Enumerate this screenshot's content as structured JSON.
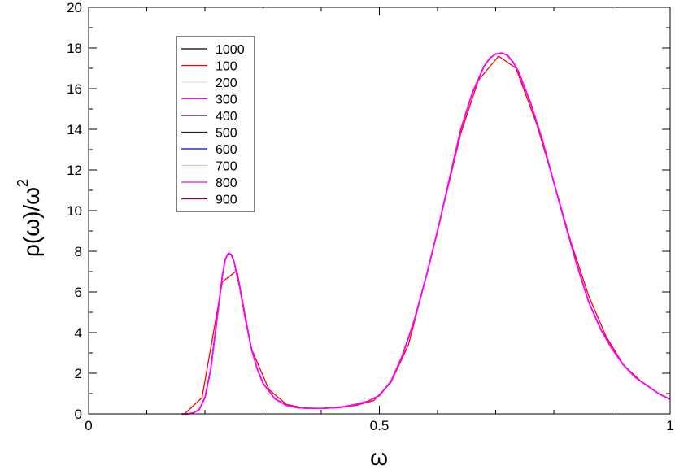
{
  "chart_data": {
    "type": "line",
    "title": "",
    "xlabel": "ω",
    "ylabel_main": "ρ(ω)/ω",
    "ylabel_sup": "2",
    "xlim": [
      0,
      1
    ],
    "ylim": [
      0,
      20
    ],
    "x_major_ticks": [
      0,
      0.5,
      1
    ],
    "x_major_tick_labels": [
      "0",
      "0.5",
      "1"
    ],
    "x_minor_ticks": [
      0.1,
      0.2,
      0.3,
      0.4,
      0.6,
      0.7,
      0.8,
      0.9
    ],
    "y_major_ticks": [
      0,
      2,
      4,
      6,
      8,
      10,
      12,
      14,
      16,
      18,
      20
    ],
    "y_major_tick_labels": [
      "0",
      "2",
      "4",
      "6",
      "8",
      "10",
      "12",
      "14",
      "16",
      "18",
      "20"
    ],
    "grid": false,
    "legend_position": "top-left",
    "smooth_curve": {
      "x": [
        0.16,
        0.17,
        0.18,
        0.19,
        0.2,
        0.21,
        0.22,
        0.23,
        0.235,
        0.24,
        0.245,
        0.25,
        0.26,
        0.27,
        0.28,
        0.29,
        0.3,
        0.32,
        0.34,
        0.36,
        0.38,
        0.4,
        0.42,
        0.44,
        0.46,
        0.48,
        0.5,
        0.52,
        0.54,
        0.56,
        0.58,
        0.6,
        0.62,
        0.64,
        0.66,
        0.68,
        0.69,
        0.7,
        0.71,
        0.72,
        0.73,
        0.74,
        0.76,
        0.78,
        0.8,
        0.82,
        0.84,
        0.86,
        0.88,
        0.9,
        0.92,
        0.94,
        0.96,
        0.98,
        1.0
      ],
      "y": [
        0.0,
        0.0,
        0.05,
        0.2,
        0.8,
        2.2,
        4.5,
        6.8,
        7.6,
        7.9,
        7.85,
        7.5,
        6.2,
        4.6,
        3.2,
        2.2,
        1.5,
        0.75,
        0.42,
        0.3,
        0.27,
        0.27,
        0.3,
        0.36,
        0.47,
        0.62,
        0.9,
        1.6,
        2.9,
        4.6,
        6.7,
        9.0,
        11.5,
        14.0,
        15.8,
        17.1,
        17.5,
        17.7,
        17.75,
        17.65,
        17.3,
        16.8,
        15.3,
        13.5,
        11.4,
        9.3,
        7.3,
        5.5,
        4.2,
        3.2,
        2.4,
        1.8,
        1.4,
        1.0,
        0.72
      ]
    },
    "series": [
      {
        "name": "1000",
        "color": "#000000",
        "style": "smooth"
      },
      {
        "name": "100",
        "color": "#ff0000",
        "style": "coarse"
      },
      {
        "name": "200",
        "color": "#dddddd",
        "style": "smooth"
      },
      {
        "name": "300",
        "color": "#ff00ff",
        "style": "smooth"
      },
      {
        "name": "400",
        "color": "#3a0a3a",
        "style": "smooth"
      },
      {
        "name": "500",
        "color": "#222222",
        "style": "smooth"
      },
      {
        "name": "600",
        "color": "#0000cc",
        "style": "smooth"
      },
      {
        "name": "700",
        "color": "#cccccc",
        "style": "smooth"
      },
      {
        "name": "800",
        "color": "#ee00ee",
        "style": "smooth"
      },
      {
        "name": "900",
        "color": "#800060",
        "style": "smooth"
      }
    ],
    "coarse_series_points": {
      "x": [
        0.165,
        0.195,
        0.23,
        0.255,
        0.28,
        0.31,
        0.34,
        0.37,
        0.4,
        0.43,
        0.46,
        0.49,
        0.52,
        0.55,
        0.58,
        0.61,
        0.64,
        0.67,
        0.705,
        0.735,
        0.77,
        0.8,
        0.83,
        0.86,
        0.89,
        0.92,
        0.95,
        0.98,
        1.0
      ],
      "y": [
        0.0,
        0.8,
        6.5,
        7.05,
        3.2,
        1.2,
        0.47,
        0.29,
        0.27,
        0.3,
        0.42,
        0.65,
        1.55,
        3.4,
        6.7,
        10.2,
        13.8,
        16.4,
        17.6,
        17.0,
        14.3,
        11.4,
        8.4,
        5.8,
        3.8,
        2.4,
        1.6,
        1.0,
        0.72
      ]
    },
    "draw_order": [
      "100",
      "1000",
      "200",
      "400",
      "500",
      "600",
      "700",
      "900",
      "800",
      "300"
    ]
  }
}
